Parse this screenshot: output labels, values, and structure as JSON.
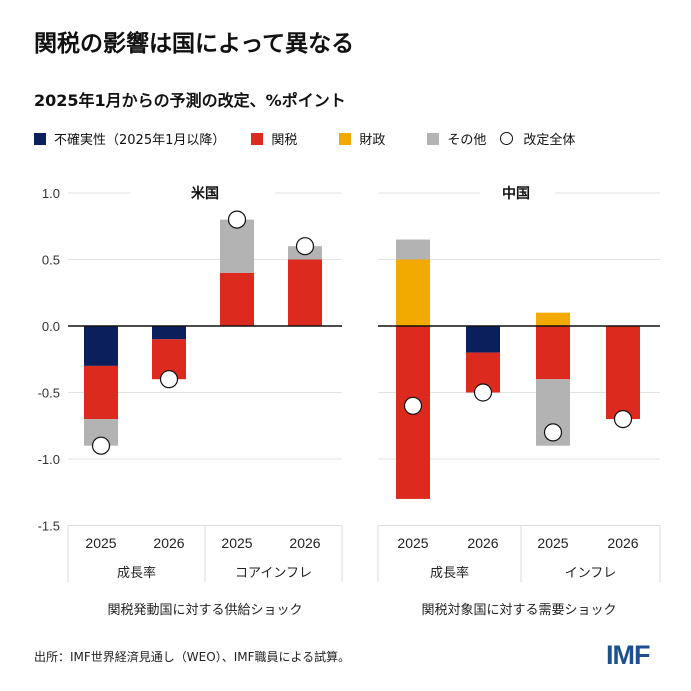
{
  "title": "関税の影響は国によって異なる",
  "subtitle": "2025年1月からの予測の改定、%ポイント",
  "legend": [
    {
      "label": "不確実性（2025年1月以降）",
      "color": "#0b1f5c",
      "shape": "square"
    },
    {
      "label": "関税",
      "color": "#dc2a1f",
      "shape": "square"
    },
    {
      "label": "財政",
      "color": "#f2a900",
      "shape": "square"
    },
    {
      "label": "その他",
      "color": "#b3b3b3",
      "shape": "square"
    },
    {
      "label": "改定全体",
      "color": "#ffffff",
      "shape": "circle"
    }
  ],
  "source": "出所：IMF世界経済見通し（WEO）、IMF職員による試算。",
  "logo": "IMF",
  "chart_data": [
    {
      "type": "bar",
      "stacked": true,
      "title": "米国",
      "ylim": [
        -1.5,
        1.0
      ],
      "yticks": [
        "1.0",
        "0.5",
        "0.0",
        "-0.5",
        "-1.0",
        "-1.5"
      ],
      "ytick_values": [
        1.0,
        0.5,
        0.0,
        -0.5,
        -1.0,
        -1.5
      ],
      "grid": true,
      "groups": [
        {
          "label": "成長率",
          "categories": [
            "2025",
            "2026"
          ]
        },
        {
          "label": "コアインフレ",
          "categories": [
            "2025",
            "2026"
          ]
        }
      ],
      "footer": "関税発動国に対する供給ショック",
      "series": [
        {
          "name": "不確実性（2025年1月以降）",
          "values": [
            -0.3,
            -0.1,
            0,
            0
          ]
        },
        {
          "name": "関税",
          "values": [
            -0.4,
            -0.3,
            0.4,
            0.5
          ]
        },
        {
          "name": "財政",
          "values": [
            0,
            0,
            0,
            0
          ]
        },
        {
          "name": "その他",
          "values": [
            -0.2,
            0,
            0.4,
            0.1
          ]
        }
      ],
      "total": {
        "name": "改定全体",
        "values": [
          -0.9,
          -0.4,
          0.8,
          0.6
        ]
      }
    },
    {
      "type": "bar",
      "stacked": true,
      "title": "中国",
      "ylim": [
        -1.5,
        1.0
      ],
      "grid": true,
      "groups": [
        {
          "label": "成長率",
          "categories": [
            "2025",
            "2026"
          ]
        },
        {
          "label": "インフレ",
          "categories": [
            "2025",
            "2026"
          ]
        }
      ],
      "footer": "関税対象国に対する需要ショック",
      "series": [
        {
          "name": "不確実性（2025年1月以降）",
          "values": [
            0,
            -0.2,
            0,
            0
          ]
        },
        {
          "name": "関税",
          "values": [
            -1.3,
            -0.3,
            -0.4,
            -0.7
          ]
        },
        {
          "name": "財政",
          "values": [
            0.5,
            0,
            0.1,
            0
          ]
        },
        {
          "name": "その他",
          "values": [
            0.15,
            0,
            -0.5,
            0
          ]
        }
      ],
      "total": {
        "name": "改定全体",
        "values": [
          -0.6,
          -0.5,
          -0.8,
          -0.7
        ]
      }
    }
  ]
}
